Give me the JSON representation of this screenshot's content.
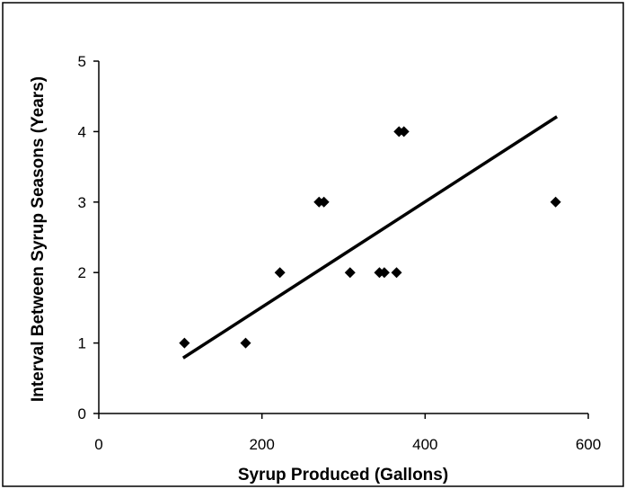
{
  "chart_data": {
    "type": "scatter",
    "title": "",
    "xlabel": "Syrup Produced (Gallons)",
    "ylabel": "Interval Between Syrup Seasons (Years)",
    "xlim": [
      0,
      600
    ],
    "ylim": [
      0,
      5
    ],
    "xticks": [
      0,
      200,
      400,
      600
    ],
    "yticks": [
      0,
      1,
      2,
      3,
      4,
      5
    ],
    "grid": false,
    "legend": "none",
    "series": [
      {
        "marker": "diamond",
        "color": "#000000",
        "points": [
          {
            "x": 105,
            "y": 1
          },
          {
            "x": 180,
            "y": 1
          },
          {
            "x": 222,
            "y": 2
          },
          {
            "x": 270,
            "y": 3
          },
          {
            "x": 276,
            "y": 3
          },
          {
            "x": 308,
            "y": 2
          },
          {
            "x": 344,
            "y": 2
          },
          {
            "x": 350,
            "y": 2
          },
          {
            "x": 365,
            "y": 2
          },
          {
            "x": 368,
            "y": 4
          },
          {
            "x": 374,
            "y": 4
          },
          {
            "x": 560,
            "y": 3
          }
        ]
      }
    ],
    "trendline": {
      "type": "linear",
      "color": "#000000",
      "from": {
        "x": 105,
        "y": 0.8
      },
      "to": {
        "x": 560,
        "y": 4.2
      }
    }
  }
}
